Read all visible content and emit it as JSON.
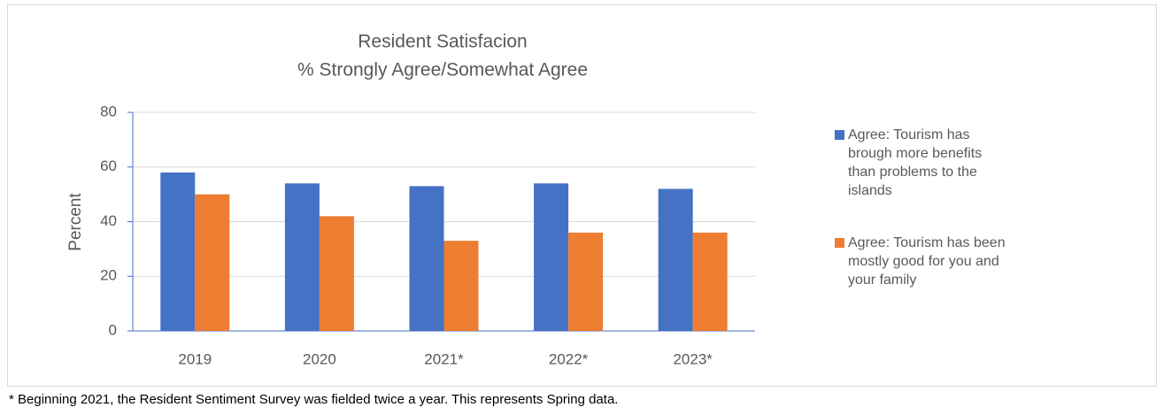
{
  "chart_data": {
    "type": "bar",
    "title": "Resident Satisfacion",
    "subtitle": "% Strongly Agree/Somewhat Agree",
    "y_label": "Percent",
    "annotation": "* Beginning 2021, the Resident Sentiment Survey was fielded twice a year.  This represents Spring data.",
    "categories": [
      "2019",
      "2020",
      "2021*",
      "2022*",
      "2023*"
    ],
    "series": [
      {
        "name": "Agree: Tourism has brough more benefits than problems to the islands",
        "color": "#4472c4",
        "values": [
          58,
          54,
          53,
          54,
          52
        ]
      },
      {
        "name": "Agree: Tourism has been mostly good for you and your family",
        "color": "#ed7d31",
        "values": [
          50,
          42,
          33,
          36,
          36
        ]
      }
    ],
    "ylim": [
      0,
      80
    ],
    "yticks": [
      0,
      20,
      40,
      60,
      80
    ],
    "grid": true,
    "legend": "right"
  }
}
